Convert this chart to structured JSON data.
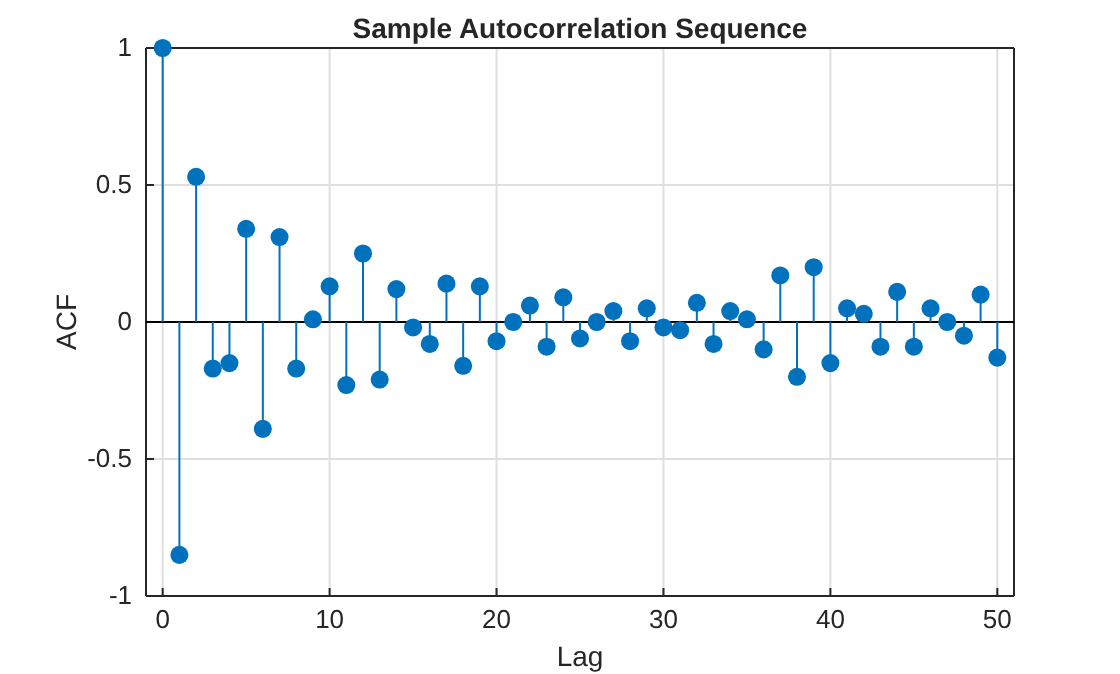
{
  "chart_data": {
    "type": "lollipop",
    "title": "Sample Autocorrelation Sequence",
    "xlabel": "Lag",
    "ylabel": "ACF",
    "x": [
      0,
      1,
      2,
      3,
      4,
      5,
      6,
      7,
      8,
      9,
      10,
      11,
      12,
      13,
      14,
      15,
      16,
      17,
      18,
      19,
      20,
      21,
      22,
      23,
      24,
      25,
      26,
      27,
      28,
      29,
      30,
      31,
      32,
      33,
      34,
      35,
      36,
      37,
      38,
      39,
      40,
      41,
      42,
      43,
      44,
      45,
      46,
      47,
      48,
      49,
      50
    ],
    "values": [
      1,
      -0.85,
      0.53,
      -0.17,
      -0.15,
      0.34,
      -0.39,
      0.31,
      -0.17,
      0.01,
      0.13,
      -0.23,
      0.25,
      -0.21,
      0.12,
      -0.02,
      -0.08,
      0.14,
      -0.16,
      0.13,
      -0.07,
      0.0,
      0.06,
      -0.09,
      0.09,
      -0.06,
      0.0,
      0.04,
      -0.07,
      0.05,
      -0.02,
      -0.03,
      0.07,
      -0.08,
      0.04,
      0.01,
      -0.1,
      0.17,
      -0.2,
      0.2,
      -0.15,
      0.05,
      0.03,
      -0.09,
      0.11,
      -0.09,
      0.05,
      0.0,
      -0.05,
      0.1,
      -0.13
    ],
    "color": "#0072bd",
    "marker": "circle",
    "grid": true,
    "xlim": [
      -1,
      51
    ],
    "xticks": [
      0,
      10,
      20,
      30,
      40,
      50
    ],
    "ylim": [
      -1,
      1
    ],
    "yticks": [
      -1,
      -0.5,
      0,
      0.5,
      1
    ]
  }
}
